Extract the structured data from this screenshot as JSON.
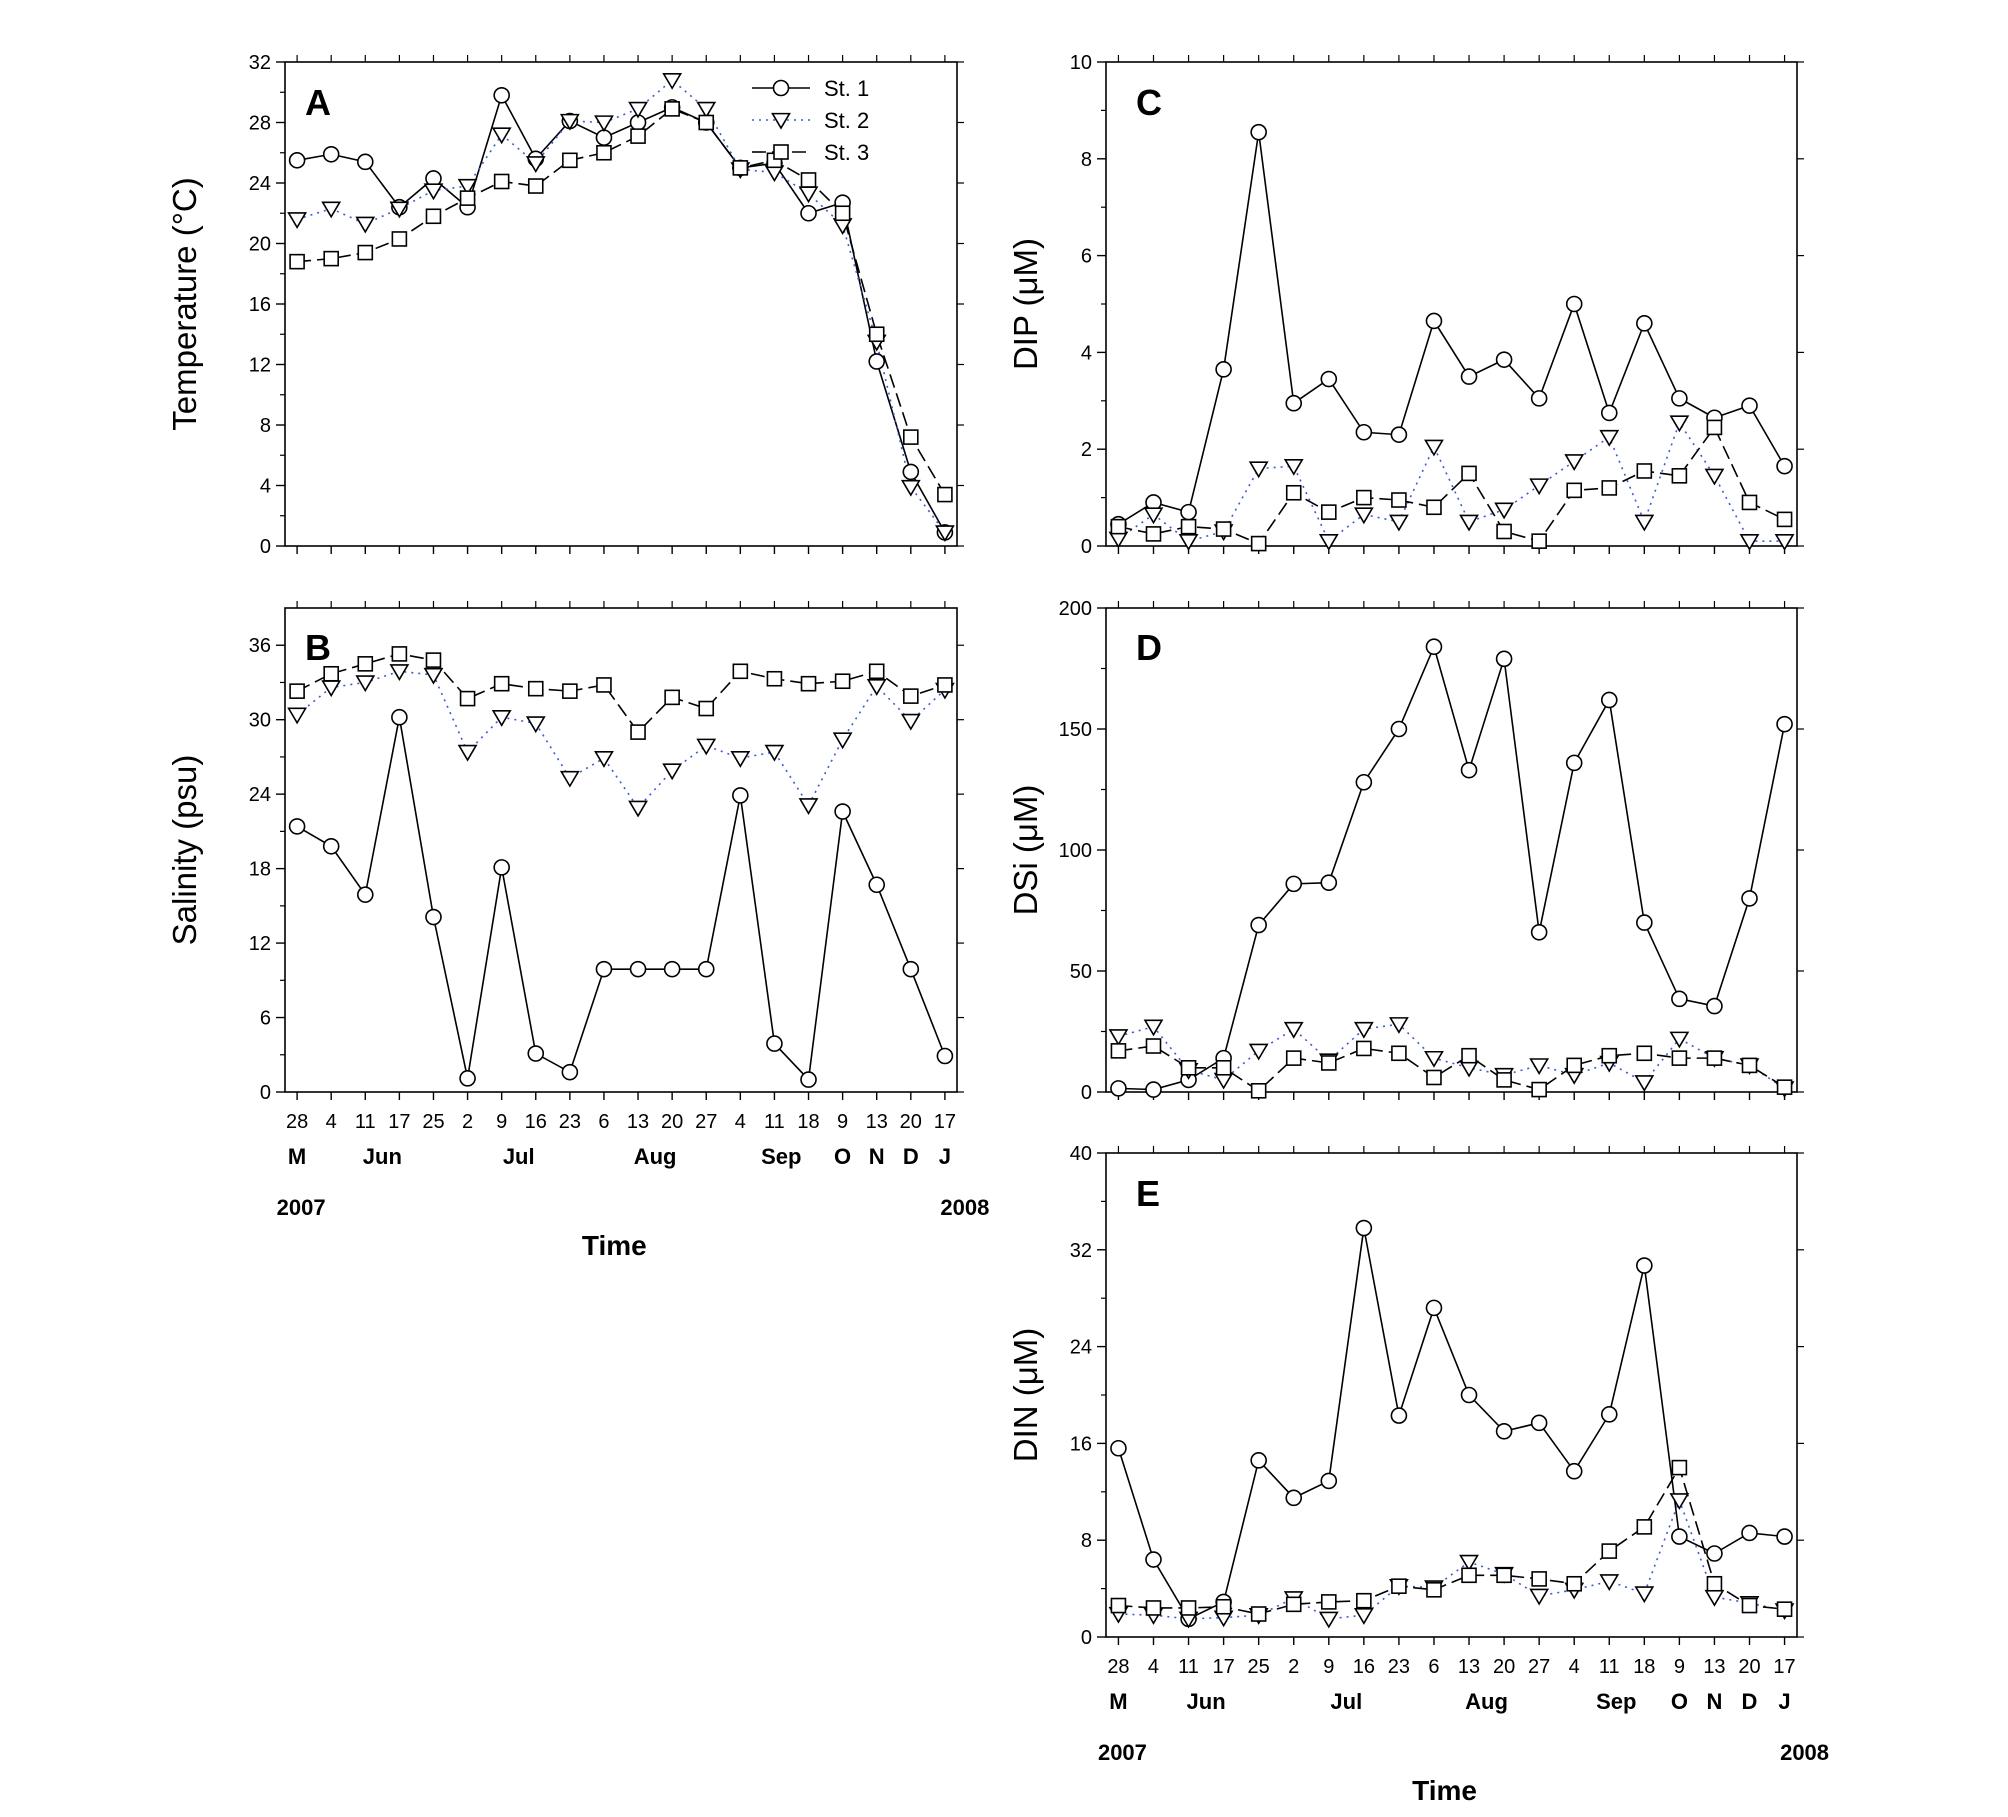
{
  "x_dates": [
    "28",
    "4",
    "11",
    "17",
    "25",
    "2",
    "9",
    "16",
    "23",
    "6",
    "13",
    "20",
    "27",
    "4",
    "11",
    "18",
    "9",
    "13",
    "20",
    "17"
  ],
  "month_labels": [
    {
      "text": "M",
      "at": 0
    },
    {
      "text": "Jun",
      "at": 2.5
    },
    {
      "text": "Jul",
      "at": 6.5
    },
    {
      "text": "Aug",
      "at": 10.5
    },
    {
      "text": "Sep",
      "at": 14.2
    },
    {
      "text": "O",
      "at": 16
    },
    {
      "text": "N",
      "at": 17
    },
    {
      "text": "D",
      "at": 18
    },
    {
      "text": "J",
      "at": 19
    }
  ],
  "years": {
    "start": "2007",
    "end": "2008"
  },
  "x_title": "Time",
  "legend": {
    "st1": "St. 1",
    "st2": "St. 2",
    "st3": "St. 3"
  },
  "styles": {
    "st1": {
      "color": "#000000",
      "dash": "none",
      "marker": "circle"
    },
    "st2": {
      "color": "#3b5bd6",
      "dash": "2,5",
      "marker": "triangle-down"
    },
    "st3": {
      "color": "#000000",
      "dash": "14,6",
      "marker": "square"
    }
  },
  "chart_data": [
    {
      "panel": "A",
      "type": "line",
      "ylabel": "Temperature (°C)",
      "ylim": [
        0,
        32
      ],
      "yticks": [
        0,
        4,
        8,
        12,
        16,
        20,
        24,
        28,
        32
      ],
      "series": [
        {
          "key": "st1",
          "name": "St. 1",
          "values": [
            25.5,
            25.9,
            25.4,
            22.4,
            24.3,
            22.4,
            29.8,
            25.6,
            28.1,
            27.0,
            28.0,
            29.0,
            28.0,
            25.0,
            25.3,
            22.0,
            22.7,
            12.2,
            4.9,
            0.9
          ]
        },
        {
          "key": "st2",
          "name": "St. 2",
          "values": [
            21.6,
            22.3,
            21.3,
            22.3,
            23.5,
            23.8,
            27.2,
            25.3,
            28.1,
            28.0,
            28.9,
            30.8,
            28.9,
            24.9,
            24.7,
            23.3,
            21.2,
            13.5,
            3.9,
            0.9
          ]
        },
        {
          "key": "st3",
          "name": "St. 3",
          "values": [
            18.8,
            19.0,
            19.4,
            20.3,
            21.8,
            23.0,
            24.1,
            23.8,
            25.5,
            26.0,
            27.1,
            28.9,
            28.0,
            25.0,
            25.5,
            24.2,
            22.0,
            14.0,
            7.2,
            3.4
          ]
        }
      ]
    },
    {
      "panel": "B",
      "type": "line",
      "ylabel": "Salinity (psu)",
      "ylim": [
        0,
        39
      ],
      "yticks": [
        0,
        6,
        12,
        18,
        24,
        30,
        36
      ],
      "series": [
        {
          "key": "st1",
          "name": "St. 1",
          "values": [
            21.4,
            19.8,
            15.9,
            30.2,
            14.1,
            1.1,
            18.1,
            3.1,
            1.6,
            9.9,
            9.9,
            9.9,
            9.9,
            23.9,
            3.9,
            1.0,
            22.6,
            16.7,
            9.9,
            2.9
          ]
        },
        {
          "key": "st2",
          "name": "St. 2",
          "values": [
            30.4,
            32.6,
            33.0,
            33.9,
            33.6,
            27.4,
            30.2,
            29.7,
            25.3,
            26.9,
            22.9,
            25.9,
            27.9,
            26.9,
            27.4,
            23.1,
            28.4,
            32.7,
            29.9,
            32.4
          ]
        },
        {
          "key": "st3",
          "name": "St. 3",
          "values": [
            32.3,
            33.7,
            34.5,
            35.3,
            34.8,
            31.7,
            32.9,
            32.5,
            32.3,
            32.8,
            29.0,
            31.8,
            30.9,
            33.9,
            33.3,
            32.9,
            33.1,
            33.9,
            31.9,
            32.8
          ]
        }
      ]
    },
    {
      "panel": "C",
      "type": "line",
      "ylabel": "DIP (μM)",
      "ylim": [
        0,
        10
      ],
      "yticks": [
        0,
        2,
        4,
        6,
        8,
        10
      ],
      "series": [
        {
          "key": "st1",
          "name": "St. 1",
          "values": [
            0.45,
            0.9,
            0.7,
            3.65,
            8.55,
            2.95,
            3.45,
            2.35,
            2.3,
            4.65,
            3.5,
            3.85,
            3.05,
            5.0,
            2.75,
            4.6,
            3.05,
            2.65,
            2.9,
            1.65
          ]
        },
        {
          "key": "st2",
          "name": "St. 2",
          "values": [
            0.15,
            0.65,
            0.1,
            0.3,
            1.6,
            1.65,
            0.1,
            0.65,
            0.5,
            2.05,
            0.5,
            0.75,
            1.25,
            1.75,
            2.25,
            0.5,
            2.55,
            1.45,
            0.1,
            0.1
          ]
        },
        {
          "key": "st3",
          "name": "St. 3",
          "values": [
            0.4,
            0.25,
            0.4,
            0.35,
            0.05,
            1.1,
            0.7,
            1.0,
            0.95,
            0.8,
            1.5,
            0.3,
            0.1,
            1.15,
            1.2,
            1.55,
            1.45,
            2.45,
            0.9,
            0.55
          ]
        }
      ]
    },
    {
      "panel": "D",
      "type": "line",
      "ylabel": "DSi (μM)",
      "ylim": [
        0,
        200
      ],
      "yticks": [
        0,
        50,
        100,
        150,
        200
      ],
      "series": [
        {
          "key": "st1",
          "name": "St. 1",
          "values": [
            1.5,
            1.0,
            5.0,
            14.0,
            69.0,
            86.0,
            86.5,
            128.0,
            150.0,
            184.0,
            133.0,
            179.0,
            66.0,
            136.0,
            162.0,
            70.0,
            38.5,
            35.5,
            80.0,
            152.0
          ]
        },
        {
          "key": "st2",
          "name": "St. 2",
          "values": [
            23.0,
            27.0,
            9.0,
            5.0,
            17.0,
            26.0,
            13.0,
            26.0,
            28.0,
            14.0,
            10.0,
            7.0,
            11.0,
            7.0,
            12.0,
            4.0,
            22.0,
            14.0,
            11.0,
            1.5
          ]
        },
        {
          "key": "st3",
          "name": "St. 3",
          "values": [
            17.0,
            19.0,
            10.0,
            10.0,
            0.5,
            14.0,
            12.0,
            18.0,
            16.0,
            6.0,
            15.0,
            5.0,
            1.0,
            11.0,
            15.0,
            16.0,
            14.0,
            14.0,
            11.0,
            2.0
          ]
        }
      ]
    },
    {
      "panel": "E",
      "type": "line",
      "ylabel": "DIN (μM)",
      "ylim": [
        0,
        40
      ],
      "yticks": [
        0,
        8,
        16,
        24,
        32,
        40
      ],
      "series": [
        {
          "key": "st1",
          "name": "St. 1",
          "values": [
            15.6,
            6.4,
            1.5,
            2.9,
            14.6,
            11.5,
            12.9,
            33.8,
            18.3,
            27.2,
            20.0,
            17.0,
            17.7,
            13.7,
            18.4,
            30.7,
            8.3,
            6.9,
            8.6,
            8.3
          ]
        },
        {
          "key": "st2",
          "name": "St. 2",
          "values": [
            1.9,
            1.8,
            1.5,
            1.6,
            1.8,
            3.2,
            1.5,
            1.8,
            4.2,
            4.1,
            6.2,
            5.2,
            3.4,
            3.9,
            4.6,
            3.6,
            11.3,
            3.3,
            2.8,
            2.2
          ]
        },
        {
          "key": "st3",
          "name": "St. 3",
          "values": [
            2.6,
            2.4,
            2.4,
            2.5,
            1.9,
            2.7,
            2.9,
            3.0,
            4.2,
            3.9,
            5.1,
            5.1,
            4.8,
            4.4,
            7.1,
            9.1,
            14.0,
            4.4,
            2.6,
            2.3
          ]
        }
      ]
    }
  ]
}
